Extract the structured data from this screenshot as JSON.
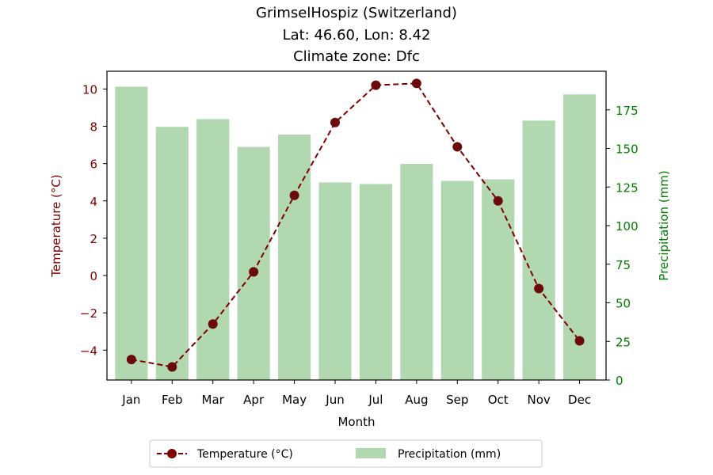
{
  "chart_data": {
    "type": "bar+line",
    "title": [
      "GrimselHospiz (Switzerland)",
      "Lat: 46.60, Lon: 8.42",
      "Climate zone: Dfc"
    ],
    "xlabel": "Month",
    "categories": [
      "Jan",
      "Feb",
      "Mar",
      "Apr",
      "May",
      "Jun",
      "Jul",
      "Aug",
      "Sep",
      "Oct",
      "Nov",
      "Dec"
    ],
    "temperature": {
      "name": "Temperature (°C)",
      "axis_label": "Temperature (°C)",
      "values": [
        -4.5,
        -4.9,
        -2.6,
        0.2,
        4.3,
        8.2,
        10.2,
        10.3,
        6.9,
        4.0,
        -0.7,
        -3.5
      ],
      "ylim": [
        -5.6,
        10.95
      ],
      "ticks": [
        -4,
        -2,
        0,
        2,
        4,
        6,
        8,
        10
      ],
      "tick_labels": [
        "−4",
        "−2",
        "0",
        "2",
        "4",
        "6",
        "8",
        "10"
      ],
      "color": "#800000",
      "line_style": "dashed",
      "marker": "circle"
    },
    "precipitation": {
      "name": "Precipitation (mm)",
      "axis_label": "Precipitation (mm)",
      "values": [
        190,
        164,
        169,
        151,
        159,
        128,
        127,
        140,
        129,
        130,
        168,
        185
      ],
      "ylim": [
        0,
        200
      ],
      "ticks": [
        0,
        25,
        50,
        75,
        100,
        125,
        150,
        175
      ],
      "tick_labels": [
        "0",
        "25",
        "50",
        "75",
        "100",
        "125",
        "150",
        "175"
      ],
      "color": "#b2d8b2",
      "axis_color": "#008000"
    },
    "legend_placement": "bottom-center",
    "grid": false
  }
}
